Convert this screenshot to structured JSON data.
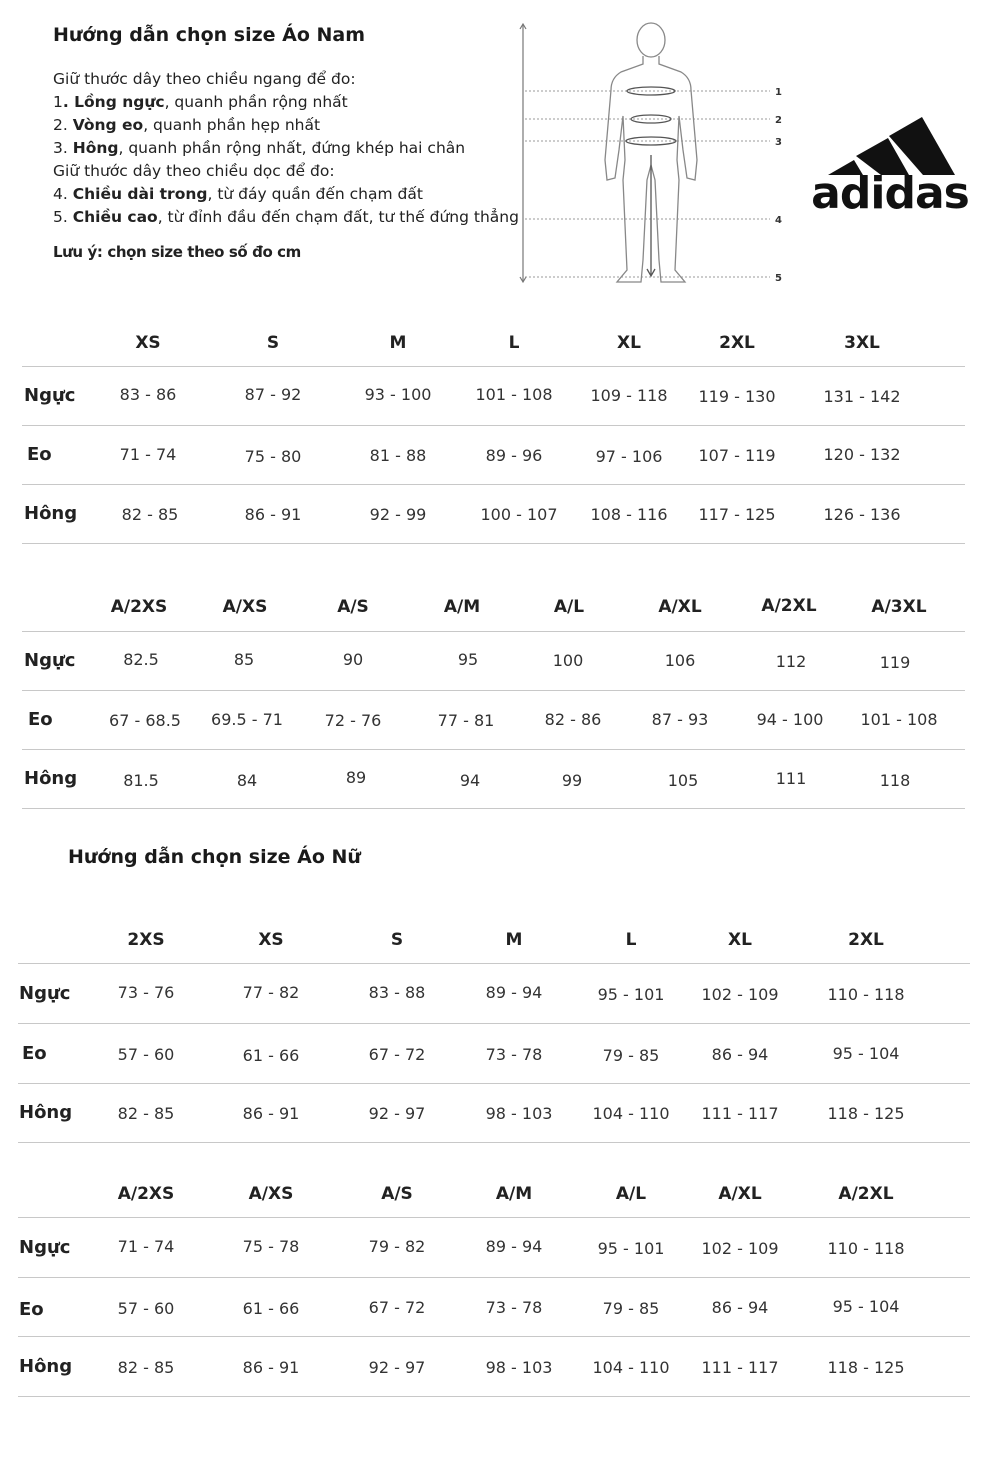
{
  "men": {
    "title": "Hướng dẫn chọn size Áo Nam",
    "intro_lines": [
      {
        "pre": "Giữ thước dây theo chiều ngang để đo:",
        "bold": "",
        "post": ""
      },
      {
        "pre": "1",
        "bold": ". Lồng ngực",
        "post": ", quanh phần rộng nhất"
      },
      {
        "pre": "2. ",
        "bold": "Vòng eo",
        "post": ", quanh phần hẹp nhất"
      },
      {
        "pre": "3. ",
        "bold": "Hông",
        "post": ", quanh phần rộng nhất, đứng khép hai chân"
      },
      {
        "pre": "Giữ thước dây theo chiều dọc để đo:",
        "bold": "",
        "post": ""
      },
      {
        "pre": "4. ",
        "bold": "Chiều dài trong",
        "post": ", từ đáy quần đến chạm đất"
      },
      {
        "pre": "5. ",
        "bold": "Chiều cao",
        "post": ", từ đỉnh đầu đến chạm đất, tư thế đứng thẳng"
      }
    ],
    "note": "Lưu ý: chọn size theo số đo cm",
    "figure_marks": [
      "1",
      "2",
      "3",
      "4",
      "5"
    ],
    "table1": {
      "headers": [
        "XS",
        "S",
        "M",
        "L",
        "XL",
        "2XL",
        "3XL"
      ],
      "rows": [
        {
          "label": "Ngực",
          "values": [
            "83 - 86",
            "87 - 92",
            "93 - 100",
            "101 - 108",
            "109 - 118",
            "119 - 130",
            "131  - 142"
          ]
        },
        {
          "label": "Eo",
          "values": [
            "71 - 74",
            "75 - 80",
            "81 - 88",
            "89 - 96",
            "97 - 106",
            "107 - 119",
            "120 - 132"
          ]
        },
        {
          "label": "Hông",
          "values": [
            "82 - 85",
            "86 - 91",
            "92 - 99",
            "100 - 107",
            "108 - 116",
            "117 - 125",
            "126 - 136"
          ]
        }
      ]
    },
    "table2": {
      "headers": [
        "A/2XS",
        "A/XS",
        "A/S",
        "A/M",
        "A/L",
        "A/XL",
        "A/2XL",
        "A/3XL"
      ],
      "rows": [
        {
          "label": "Ngực",
          "values": [
            "82.5",
            "85",
            "90",
            "95",
            "100",
            "106",
            "112",
            "119"
          ]
        },
        {
          "label": "Eo",
          "values": [
            "67 - 68.5",
            "69.5 - 71",
            "72 - 76",
            "77 - 81",
            "82 - 86",
            "87 - 93",
            "94 - 100",
            "101 - 108"
          ]
        },
        {
          "label": "Hông",
          "values": [
            "81.5",
            "84",
            "89",
            "94",
            "99",
            "105",
            "111",
            "118"
          ]
        }
      ]
    }
  },
  "brand": {
    "logo_text": "adidas",
    "color": "#111111"
  },
  "women": {
    "title": "Hướng dẫn chọn size Áo Nữ",
    "table1": {
      "headers": [
        "2XS",
        "XS",
        "S",
        "M",
        "L",
        "XL",
        "2XL"
      ],
      "rows": [
        {
          "label": "Ngực",
          "values": [
            "73 - 76",
            "77 - 82",
            "83 - 88",
            "89 - 94",
            "95 - 101",
            "102 - 109",
            "110 - 118"
          ]
        },
        {
          "label": "Eo",
          "values": [
            "57 - 60",
            "61 - 66",
            "67 - 72",
            "73 - 78",
            "79 - 85",
            "86 - 94",
            "95 - 104"
          ]
        },
        {
          "label": "Hông",
          "values": [
            "82 - 85",
            "86 - 91",
            "92 - 97",
            "98 - 103",
            "104 - 110",
            "111 - 117",
            "118 - 125"
          ]
        }
      ]
    },
    "table2": {
      "headers": [
        "A/2XS",
        "A/XS",
        "A/S",
        "A/M",
        "A/L",
        "A/XL",
        "A/2XL"
      ],
      "rows": [
        {
          "label": "Ngực",
          "values": [
            "71 - 74",
            "75 - 78",
            "79 - 82",
            "89 - 94",
            "95 - 101",
            "102 - 109",
            "110 - 118"
          ]
        },
        {
          "label": "Eo",
          "values": [
            "57 - 60",
            "61 - 66",
            "67 - 72",
            "73 - 78",
            "79 - 85",
            "86 - 94",
            "95 - 104"
          ]
        },
        {
          "label": "Hông",
          "values": [
            "82 - 85",
            "86 - 91",
            "92 - 97",
            "98 - 103",
            "104 - 110",
            "111 - 117",
            "118 - 125"
          ]
        }
      ]
    }
  }
}
